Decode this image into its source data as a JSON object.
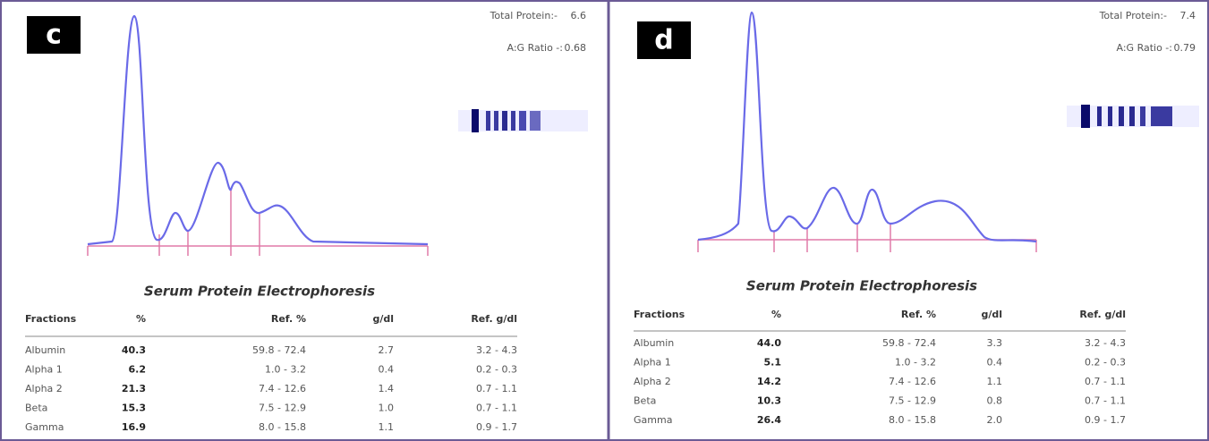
{
  "panels": [
    {
      "label": "c",
      "total_protein_label": "Total Protein:-",
      "total_protein": "6.6",
      "ag_label": "A:G Ratio -:",
      "ag_ratio": "0.68",
      "title": "Serum Protein Electrophoresis",
      "headers": [
        "Fractions",
        "%",
        "Ref. %",
        "g/dl",
        "Ref. g/dl"
      ],
      "rows": [
        [
          "Albumin",
          "40.3",
          "59.8 - 72.4",
          "2.7",
          "3.2 -  4.3"
        ],
        [
          "Alpha 1",
          "6.2",
          "1.0 -  3.2",
          "0.4",
          "0.2 -  0.3"
        ],
        [
          "Alpha 2",
          "21.3",
          "7.4 - 12.6",
          "1.4",
          "0.7 -  1.1"
        ],
        [
          "Beta",
          "15.3",
          "7.5 - 12.9",
          "1.0",
          "0.7 -  1.1"
        ],
        [
          "Gamma",
          "16.9",
          "8.0 - 15.8",
          "1.1",
          "0.9 -  1.7"
        ]
      ]
    },
    {
      "label": "d",
      "total_protein_label": "Total Protein:-",
      "total_protein": "7.4",
      "ag_label": "A:G Ratio -:",
      "ag_ratio": "0.79",
      "title": "Serum Protein Electrophoresis",
      "headers": [
        "Fractions",
        "%",
        "Ref. %",
        "g/dl",
        "Ref. g/dl"
      ],
      "rows": [
        [
          "Albumin",
          "44.0",
          "59.8 - 72.4",
          "3.3",
          "3.2 -  4.3"
        ],
        [
          "Alpha 1",
          "5.1",
          "1.0 -  3.2",
          "0.4",
          "0.2 -  0.3"
        ],
        [
          "Alpha 2",
          "14.2",
          "7.4 - 12.6",
          "1.1",
          "0.7 -  1.1"
        ],
        [
          "Beta",
          "10.3",
          "7.5 - 12.9",
          "0.8",
          "0.7 -  1.1"
        ],
        [
          "Gamma",
          "26.4",
          "8.0 - 15.8",
          "2.0",
          "0.9 -  1.7"
        ]
      ]
    }
  ]
}
